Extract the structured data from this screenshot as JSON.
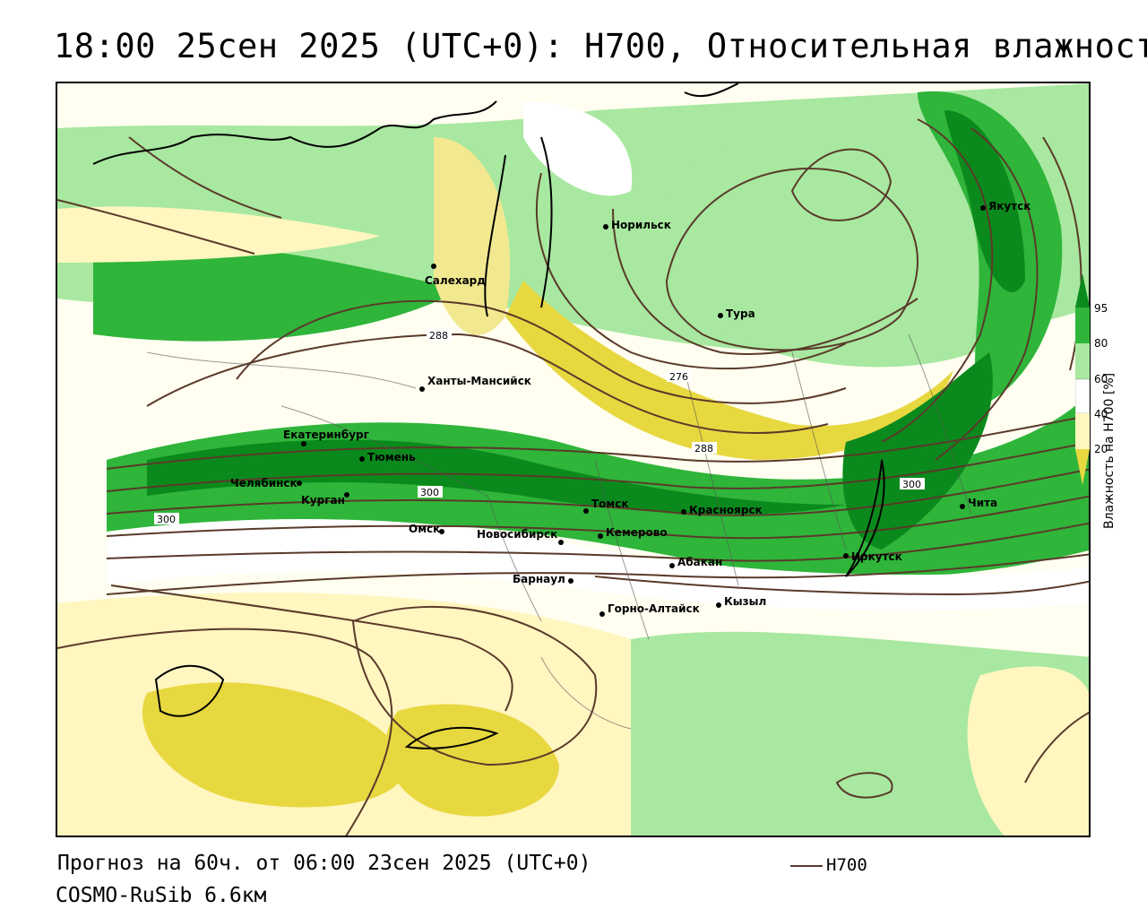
{
  "title": "18:00 25сен 2025 (UTC+0): H700, Относительная влажность",
  "footer": {
    "forecast": "Прогноз на 60ч. от 06:00 23сен 2025 (UTC+0)",
    "model": "COSMO-RuSib 6.6км"
  },
  "legend": {
    "line_label": "H700",
    "line_color": "#5a3a2a"
  },
  "colorbar": {
    "title": "Влажность на H700 [%]",
    "ticks": [
      "95",
      "80",
      "60",
      "40",
      "20"
    ],
    "colors": {
      "c95": "#0a8a1c",
      "c80": "#2fb53a",
      "c60": "#a8e8a0",
      "c50": "#ffffff",
      "c40": "#fff6c0",
      "c20": "#e8d840"
    }
  },
  "cities": [
    {
      "name": "Норильск"
    },
    {
      "name": "Якутск"
    },
    {
      "name": "Салехард"
    },
    {
      "name": "Тура"
    },
    {
      "name": "Ханты-Мансийск"
    },
    {
      "name": "Екатеринбург"
    },
    {
      "name": "Тюмень"
    },
    {
      "name": "Челябинск"
    },
    {
      "name": "Курган"
    },
    {
      "name": "Томск"
    },
    {
      "name": "Красноярск"
    },
    {
      "name": "Омск"
    },
    {
      "name": "Новосибирск"
    },
    {
      "name": "Кемерово"
    },
    {
      "name": "Абакан"
    },
    {
      "name": "Иркутск"
    },
    {
      "name": "Чита"
    },
    {
      "name": "Барнаул"
    },
    {
      "name": "Кызыл"
    },
    {
      "name": "Горно-Алтайск"
    }
  ],
  "isolines": [
    "288",
    "276",
    "288",
    "300",
    "300",
    "300"
  ]
}
